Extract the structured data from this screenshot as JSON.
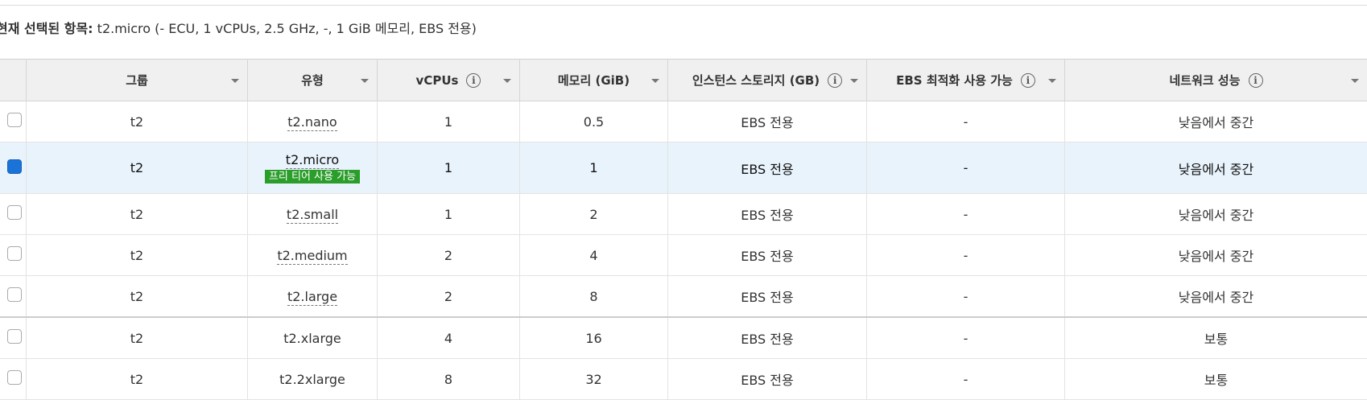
{
  "summary": {
    "label": "현재 선택된 항목:",
    "value": " t2.micro (- ECU, 1 vCPUs, 2.5 GHz, -, 1 GiB 메모리, EBS 전용)"
  },
  "table": {
    "headers": {
      "group": "그룹",
      "type": "유형",
      "vcpus": "vCPUs",
      "memory": "메모리 (GiB)",
      "storage": "인스턴스 스토리지 (GB)",
      "ebs_opt": "EBS 최적화 사용 가능",
      "network": "네트워크 성능"
    },
    "info_glyph": "i",
    "free_tier_badge": "프리 티어 사용 가능",
    "rows": [
      {
        "group": "t2",
        "type": "t2.nano",
        "vcpus": "1",
        "memory": "0.5",
        "storage": "EBS 전용",
        "ebs_opt": "-",
        "network": "낮음에서 중간",
        "checked": false
      },
      {
        "group": "t2",
        "type": "t2.micro",
        "vcpus": "1",
        "memory": "1",
        "storage": "EBS 전용",
        "ebs_opt": "-",
        "network": "낮음에서 중간",
        "checked": true
      },
      {
        "group": "t2",
        "type": "t2.small",
        "vcpus": "1",
        "memory": "2",
        "storage": "EBS 전용",
        "ebs_opt": "-",
        "network": "낮음에서 중간",
        "checked": false
      },
      {
        "group": "t2",
        "type": "t2.medium",
        "vcpus": "2",
        "memory": "4",
        "storage": "EBS 전용",
        "ebs_opt": "-",
        "network": "낮음에서 중간",
        "checked": false
      },
      {
        "group": "t2",
        "type": "t2.large",
        "vcpus": "2",
        "memory": "8",
        "storage": "EBS 전용",
        "ebs_opt": "-",
        "network": "낮음에서 중간",
        "checked": false
      },
      {
        "group": "t2",
        "type": "t2.xlarge",
        "vcpus": "4",
        "memory": "16",
        "storage": "EBS 전용",
        "ebs_opt": "-",
        "network": "보통",
        "checked": false
      },
      {
        "group": "t2",
        "type": "t2.2xlarge",
        "vcpus": "8",
        "memory": "32",
        "storage": "EBS 전용",
        "ebs_opt": "-",
        "network": "보통",
        "checked": false
      }
    ]
  },
  "colors": {
    "selected_row_bg": "#e8f3fc",
    "checkbox_checked": "#1a73d9",
    "free_tier_bg": "#2a9d2a"
  }
}
